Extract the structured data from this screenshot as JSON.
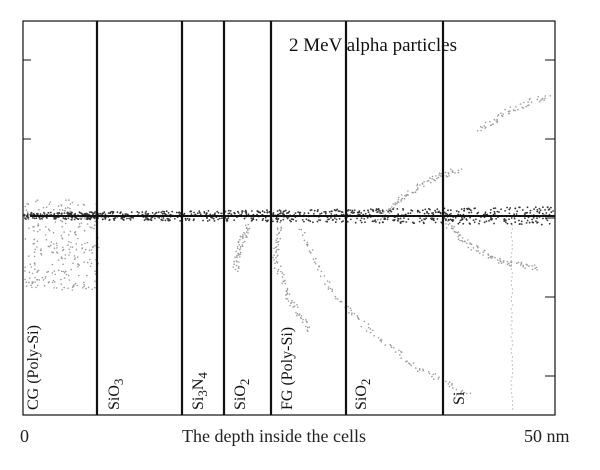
{
  "figure": {
    "beam_label": "2 MeV alpha particles",
    "x_axis": {
      "start_label": "0",
      "title": "The depth inside the cells",
      "end_label": "50 nm"
    },
    "layers": [
      {
        "label": "CG (Poly-Si)",
        "base": "CG (Poly-Si)",
        "sub": "",
        "tail": ""
      },
      {
        "label": "SiO3",
        "base": "SiO",
        "sub": "3",
        "tail": ""
      },
      {
        "label": "Si3N4",
        "base": "Si",
        "sub": "3",
        "tail": "N",
        "sub2": "4"
      },
      {
        "label": "SiO2",
        "base": "SiO",
        "sub": "2",
        "tail": ""
      },
      {
        "label": "FG (Poly-Si)",
        "base": "FG (Poly-Si)",
        "sub": "",
        "tail": ""
      },
      {
        "label": "SiO2",
        "base": "SiO",
        "sub": "2",
        "tail": ""
      },
      {
        "label": "Si",
        "base": "Si",
        "sub": "",
        "tail": ""
      }
    ],
    "colors": {
      "frame": "#111111",
      "track": "#111111",
      "scatter_dense": "#333333",
      "scatter_light": "#9a9a9a"
    }
  }
}
